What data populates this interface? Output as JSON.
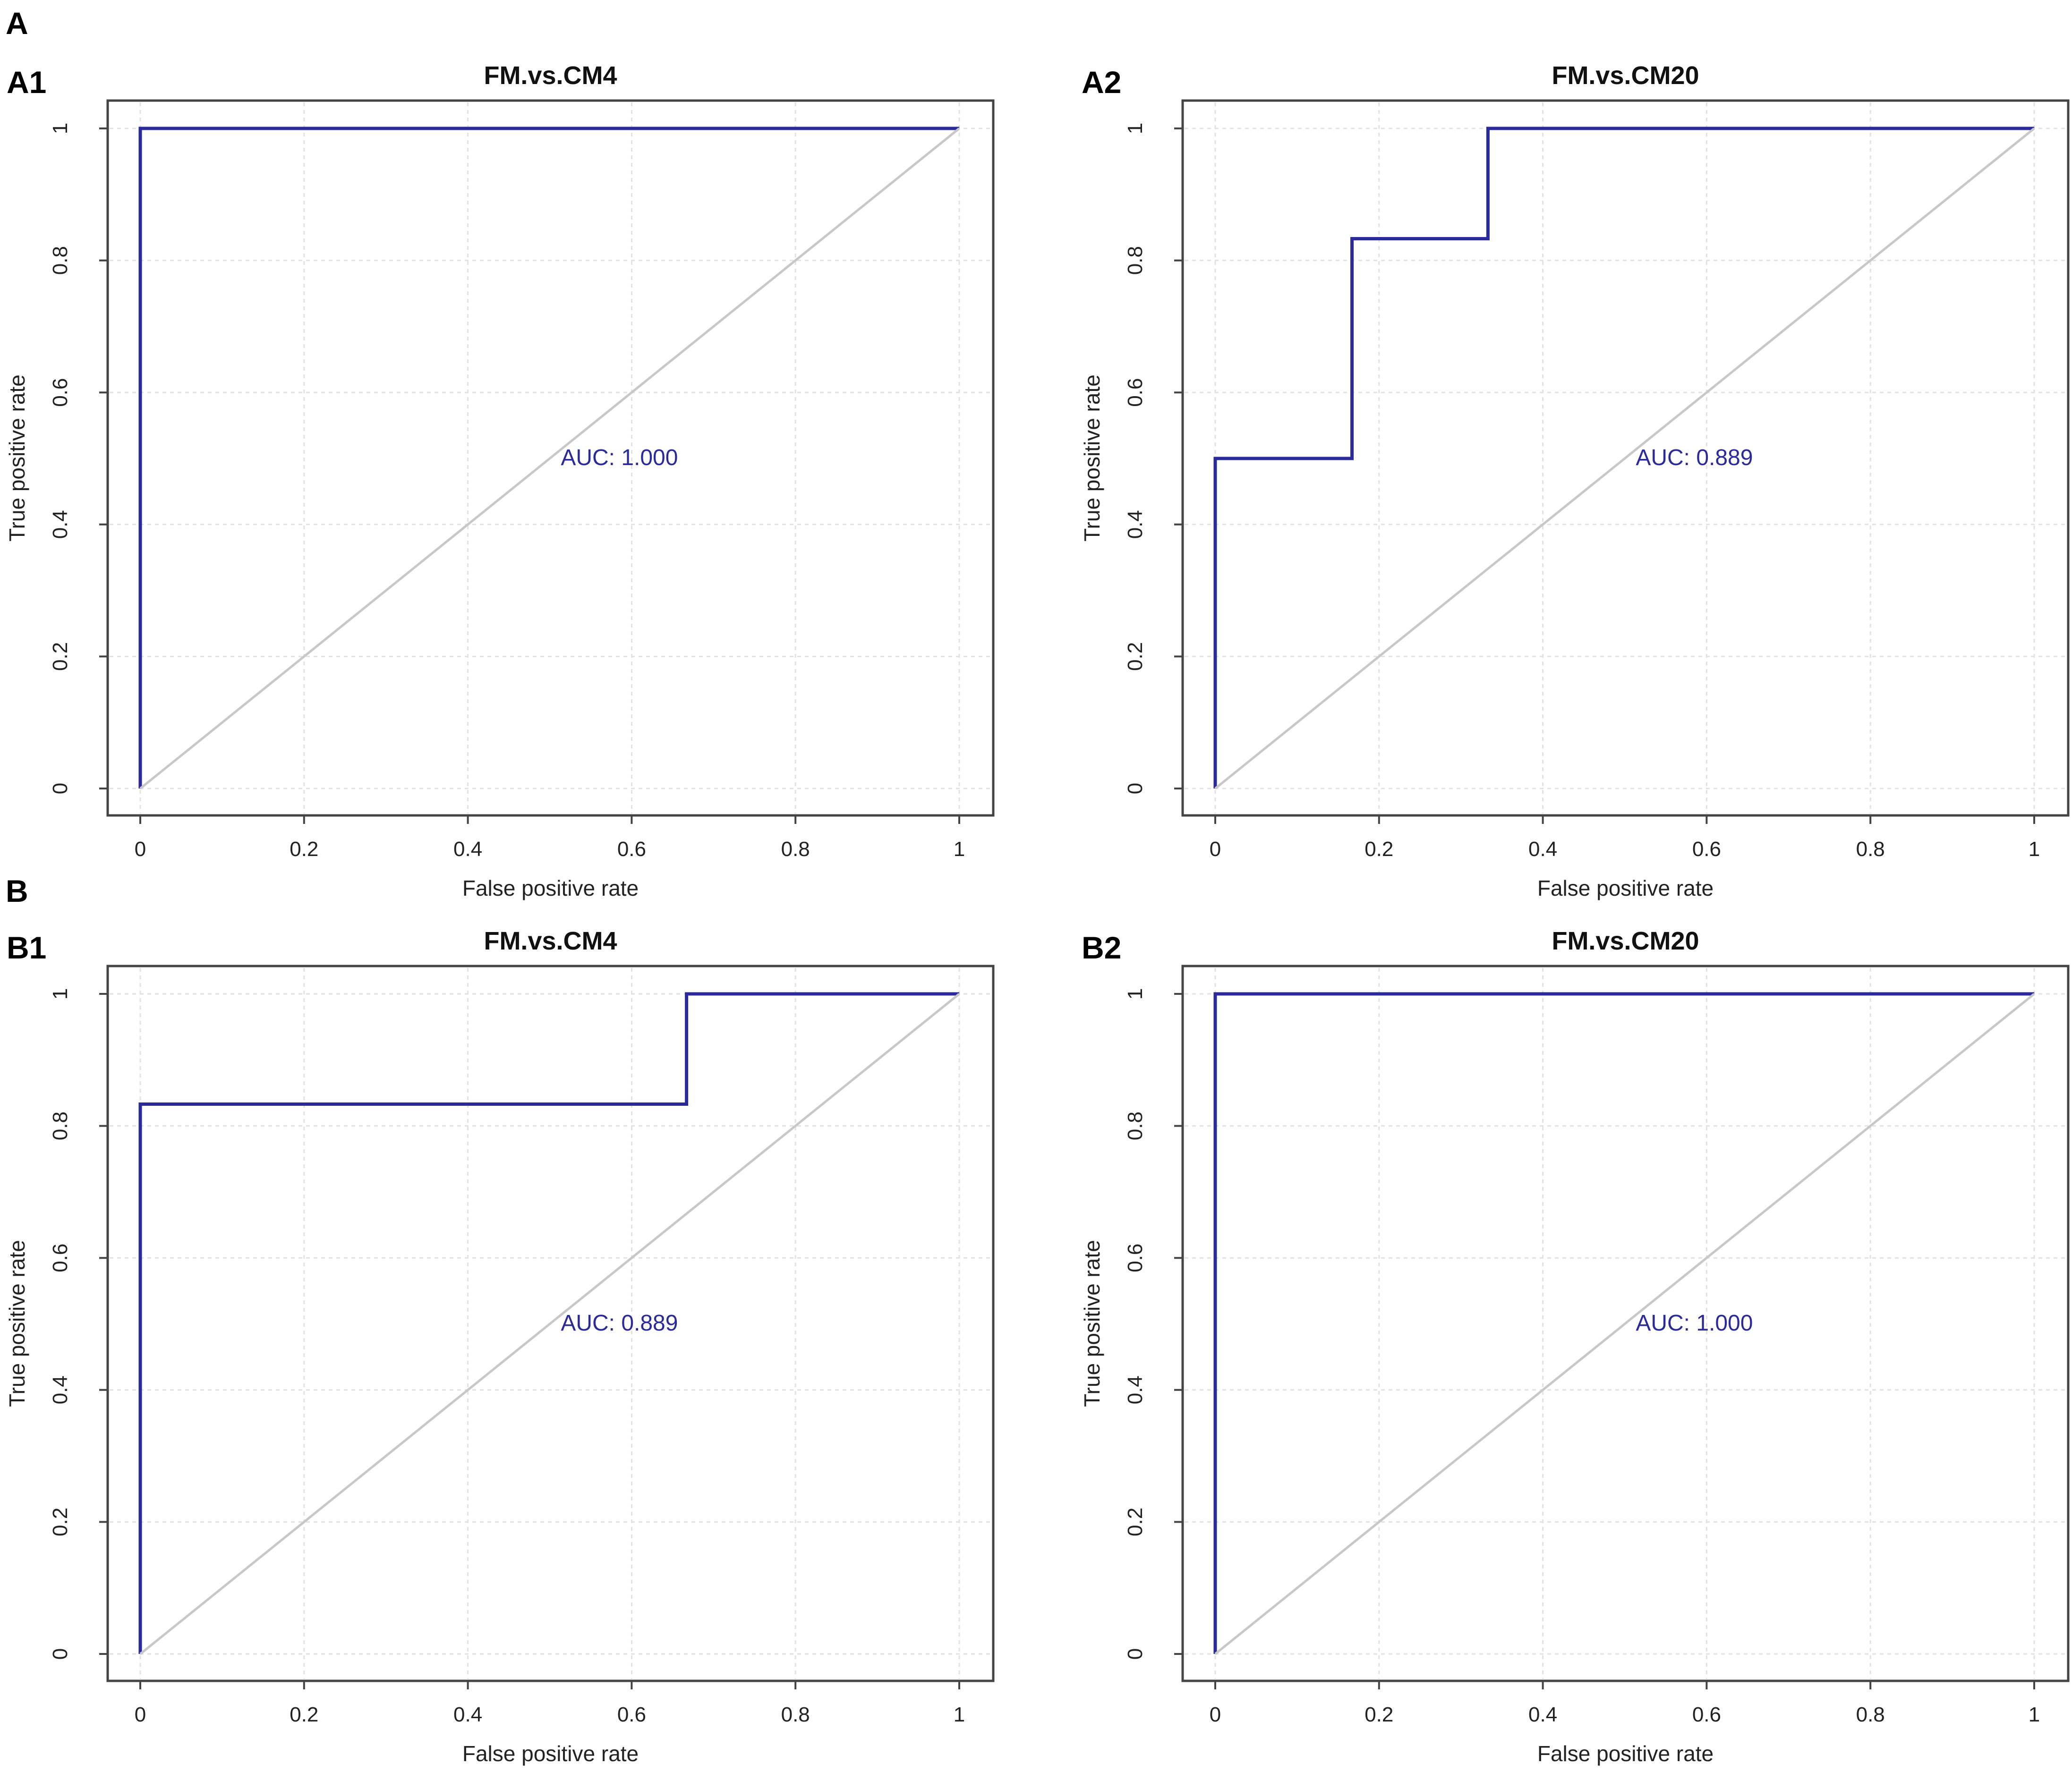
{
  "figure": {
    "section_labels": [
      "A",
      "B"
    ],
    "colors": {
      "roc": "#2a2a9a",
      "diagonal": "#c8c8c8",
      "grid": "#e2e2e2",
      "frame": "#444444"
    }
  },
  "chart_data": [
    {
      "panel_label": "A1",
      "type": "line",
      "title": "FM.vs.CM4",
      "xlabel": "False positive rate",
      "ylabel": "True positive rate",
      "xlim": [
        0,
        1
      ],
      "ylim": [
        0,
        1
      ],
      "xticks": [
        "0",
        "0.2",
        "0.4",
        "0.6",
        "0.8",
        "1"
      ],
      "yticks": [
        "0",
        "0.2",
        "0.4",
        "0.6",
        "0.8",
        "1"
      ],
      "grid": true,
      "annotation": "AUC: 1.000",
      "series": [
        {
          "name": "ROC",
          "x": [
            0,
            0,
            1
          ],
          "y": [
            0,
            1,
            1
          ]
        },
        {
          "name": "chance",
          "x": [
            0,
            1
          ],
          "y": [
            0,
            1
          ]
        }
      ]
    },
    {
      "panel_label": "A2",
      "type": "line",
      "title": "FM.vs.CM20",
      "xlabel": "False positive rate",
      "ylabel": "True positive rate",
      "xlim": [
        0,
        1
      ],
      "ylim": [
        0,
        1
      ],
      "xticks": [
        "0",
        "0.2",
        "0.4",
        "0.6",
        "0.8",
        "1"
      ],
      "yticks": [
        "0",
        "0.2",
        "0.4",
        "0.6",
        "0.8",
        "1"
      ],
      "grid": true,
      "annotation": "AUC: 0.889",
      "series": [
        {
          "name": "ROC",
          "x": [
            0,
            0,
            0.167,
            0.167,
            0.333,
            0.333,
            1
          ],
          "y": [
            0,
            0.5,
            0.5,
            0.833,
            0.833,
            1,
            1
          ]
        },
        {
          "name": "chance",
          "x": [
            0,
            1
          ],
          "y": [
            0,
            1
          ]
        }
      ]
    },
    {
      "panel_label": "B1",
      "type": "line",
      "title": "FM.vs.CM4",
      "xlabel": "False positive rate",
      "ylabel": "True positive rate",
      "xlim": [
        0,
        1
      ],
      "ylim": [
        0,
        1
      ],
      "xticks": [
        "0",
        "0.2",
        "0.4",
        "0.6",
        "0.8",
        "1"
      ],
      "yticks": [
        "0",
        "0.2",
        "0.4",
        "0.6",
        "0.8",
        "1"
      ],
      "grid": true,
      "annotation": "AUC: 0.889",
      "series": [
        {
          "name": "ROC",
          "x": [
            0,
            0,
            0.667,
            0.667,
            1
          ],
          "y": [
            0,
            0.833,
            0.833,
            1,
            1
          ]
        },
        {
          "name": "chance",
          "x": [
            0,
            1
          ],
          "y": [
            0,
            1
          ]
        }
      ]
    },
    {
      "panel_label": "B2",
      "type": "line",
      "title": "FM.vs.CM20",
      "xlabel": "False positive rate",
      "ylabel": "True positive rate",
      "xlim": [
        0,
        1
      ],
      "ylim": [
        0,
        1
      ],
      "xticks": [
        "0",
        "0.2",
        "0.4",
        "0.6",
        "0.8",
        "1"
      ],
      "yticks": [
        "0",
        "0.2",
        "0.4",
        "0.6",
        "0.8",
        "1"
      ],
      "grid": true,
      "annotation": "AUC: 1.000",
      "series": [
        {
          "name": "ROC",
          "x": [
            0,
            0,
            1
          ],
          "y": [
            0,
            1,
            1
          ]
        },
        {
          "name": "chance",
          "x": [
            0,
            1
          ],
          "y": [
            0,
            1
          ]
        }
      ]
    }
  ]
}
